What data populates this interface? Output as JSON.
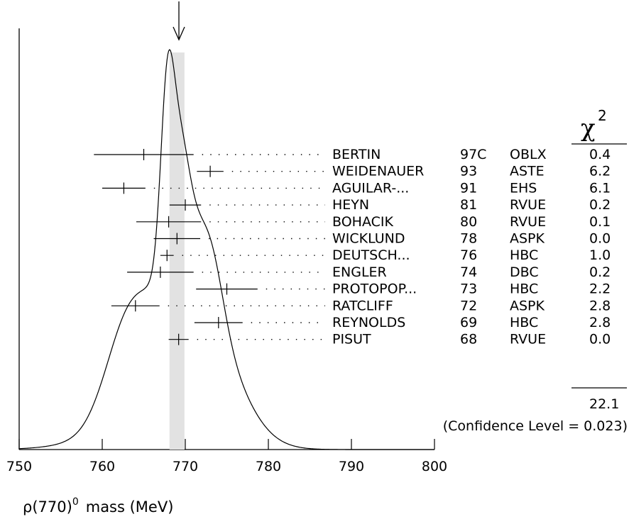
{
  "chart_data": {
    "type": "ideogram",
    "xlabel_prefix": "ρ(770)",
    "xlabel_sup": "0",
    "xlabel_suffix": "mass (MeV)",
    "xlim": [
      750,
      800
    ],
    "xticks": [
      750,
      760,
      770,
      780,
      790,
      800
    ],
    "average": {
      "value": 769.0,
      "band": [
        768.1,
        769.9
      ]
    },
    "chi2_header": "χ",
    "chi2_header_sup": "2",
    "measurements": [
      {
        "author": "BERTIN",
        "year": "97C",
        "tech": "OBLX",
        "value": 765.0,
        "error": 6.0,
        "chi2": "0.4"
      },
      {
        "author": "WEIDENAUER",
        "year": "93",
        "tech": "ASTE",
        "value": 773.0,
        "error": 1.6,
        "chi2": "6.2"
      },
      {
        "author": "AGUILAR-...",
        "year": "91",
        "tech": "EHS",
        "value": 762.6,
        "error": 2.6,
        "chi2": "6.1"
      },
      {
        "author": "HEYN",
        "year": "81",
        "tech": "RVUE",
        "value": 770.0,
        "error": 1.9,
        "chi2": "0.2"
      },
      {
        "author": "BOHACIK",
        "year": "80",
        "tech": "RVUE",
        "value": 768.0,
        "error": 3.9,
        "chi2": "0.1"
      },
      {
        "author": "WICKLUND",
        "year": "78",
        "tech": "ASPK",
        "value": 769.0,
        "error": 2.8,
        "chi2": "0.0"
      },
      {
        "author": "DEUTSCH...",
        "year": "76",
        "tech": "HBC",
        "value": 767.8,
        "error": 0.8,
        "chi2": "1.0"
      },
      {
        "author": "ENGLER",
        "year": "74",
        "tech": "DBC",
        "value": 767.0,
        "error": 4.0,
        "chi2": "0.2"
      },
      {
        "author": "PROTOPOP...",
        "year": "73",
        "tech": "HBC",
        "value": 775.0,
        "error": 3.7,
        "chi2": "2.2"
      },
      {
        "author": "RATCLIFF",
        "year": "72",
        "tech": "ASPK",
        "value": 764.0,
        "error": 2.9,
        "chi2": "2.8"
      },
      {
        "author": "REYNOLDS",
        "year": "69",
        "tech": "HBC",
        "value": 774.0,
        "error": 2.9,
        "chi2": "2.8"
      },
      {
        "author": "PISUT",
        "year": "68",
        "tech": "RVUE",
        "value": 769.2,
        "error": 1.2,
        "chi2": "0.0"
      }
    ],
    "chi2_total": "22.1",
    "confidence_level": "(Confidence Level = 0.023)"
  }
}
